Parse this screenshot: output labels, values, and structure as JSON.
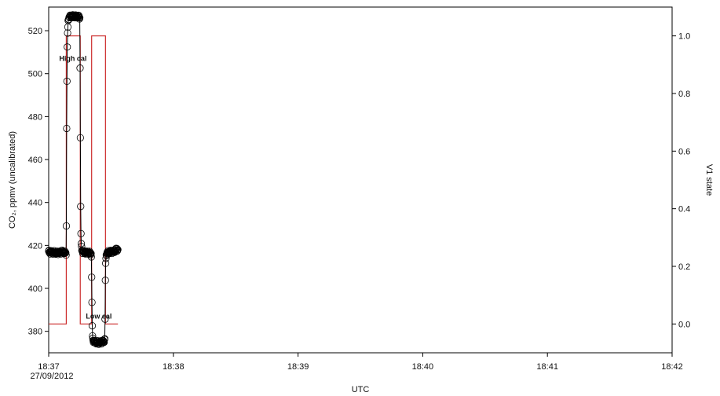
{
  "chart_data": {
    "type": "line",
    "x_axis": {
      "label": "UTC",
      "range_minutes": [
        1117,
        1162
      ],
      "ticks": [
        {
          "value": 1117,
          "label": "18:37"
        },
        {
          "value": 1126,
          "label": "18:38"
        },
        {
          "value": 1135,
          "label": "18:39"
        },
        {
          "value": 1144,
          "label": "18:40"
        },
        {
          "value": 1153,
          "label": "18:41"
        },
        {
          "value": 1162,
          "label": "18:42"
        }
      ],
      "date_label": "27/09/2012"
    },
    "y_axis_left": {
      "label": "CO₂, ppmv (uncalibrated)",
      "range": [
        370,
        531
      ],
      "ticks": [
        380,
        400,
        420,
        440,
        460,
        480,
        500,
        520
      ]
    },
    "y_axis_right": {
      "label": "V1 state",
      "range": [
        -0.1,
        1.1
      ],
      "ticks": [
        0.0,
        0.2,
        0.4,
        0.6,
        0.8,
        1.0
      ],
      "tick_labels": [
        "0.0",
        "0.2",
        "0.4",
        "0.6",
        "0.8",
        "1.0"
      ]
    },
    "series": [
      {
        "name": "",
        "axis": "left",
        "style": "line-with-open-circles",
        "color": "#000000",
        "points": [
          [
            37.0,
            417
          ],
          [
            37.6,
            416.5
          ],
          [
            38.0,
            417
          ],
          [
            38.264,
            416.2
          ],
          [
            38.28,
            433.7
          ],
          [
            38.3,
            478.9
          ],
          [
            38.33,
            506
          ],
          [
            38.35,
            516
          ],
          [
            38.38,
            521
          ],
          [
            38.4,
            524
          ],
          [
            38.45,
            526
          ],
          [
            38.5,
            526.5
          ],
          [
            38.8,
            526.7
          ],
          [
            39.1,
            526.7
          ],
          [
            39.2,
            526.3
          ],
          [
            39.245,
            525.9
          ],
          [
            39.26,
            512
          ],
          [
            39.29,
            467.5
          ],
          [
            39.31,
            437.5
          ],
          [
            39.33,
            426
          ],
          [
            39.35,
            421
          ],
          [
            39.38,
            418.5
          ],
          [
            39.45,
            417
          ],
          [
            39.8,
            416.6
          ],
          [
            40.07,
            416.4
          ],
          [
            40.09,
            412
          ],
          [
            40.12,
            395.5
          ],
          [
            40.14,
            383
          ],
          [
            40.17,
            378
          ],
          [
            40.2,
            376
          ],
          [
            40.3,
            375
          ],
          [
            40.6,
            374.7
          ],
          [
            40.96,
            375.2
          ],
          [
            41.02,
            375.8
          ],
          [
            41.06,
            377
          ],
          [
            41.08,
            394.5
          ],
          [
            41.1,
            408.5
          ],
          [
            41.12,
            413
          ],
          [
            41.15,
            415
          ],
          [
            41.2,
            416.5
          ],
          [
            41.4,
            417.1
          ],
          [
            41.7,
            417
          ],
          [
            41.92,
            418.2
          ],
          [
            42.0,
            418
          ]
        ]
      },
      {
        "name": "",
        "axis": "right",
        "style": "step-line",
        "color": "#cc2b2b",
        "points": [
          [
            37.0,
            0
          ],
          [
            38.27,
            0
          ],
          [
            38.27,
            1
          ],
          [
            39.28,
            1
          ],
          [
            39.28,
            0
          ],
          [
            40.1,
            0
          ],
          [
            40.1,
            1
          ],
          [
            41.1,
            1
          ],
          [
            41.1,
            0
          ],
          [
            42.0,
            0
          ]
        ]
      }
    ],
    "annotations": [
      {
        "text": "High cal",
        "x": 38.75,
        "y": 506
      },
      {
        "text": "Low cal",
        "x": 40.62,
        "y": 386
      }
    ],
    "grid": false,
    "colors": {
      "co2": "#000000",
      "v1": "#cc2b2b"
    }
  }
}
